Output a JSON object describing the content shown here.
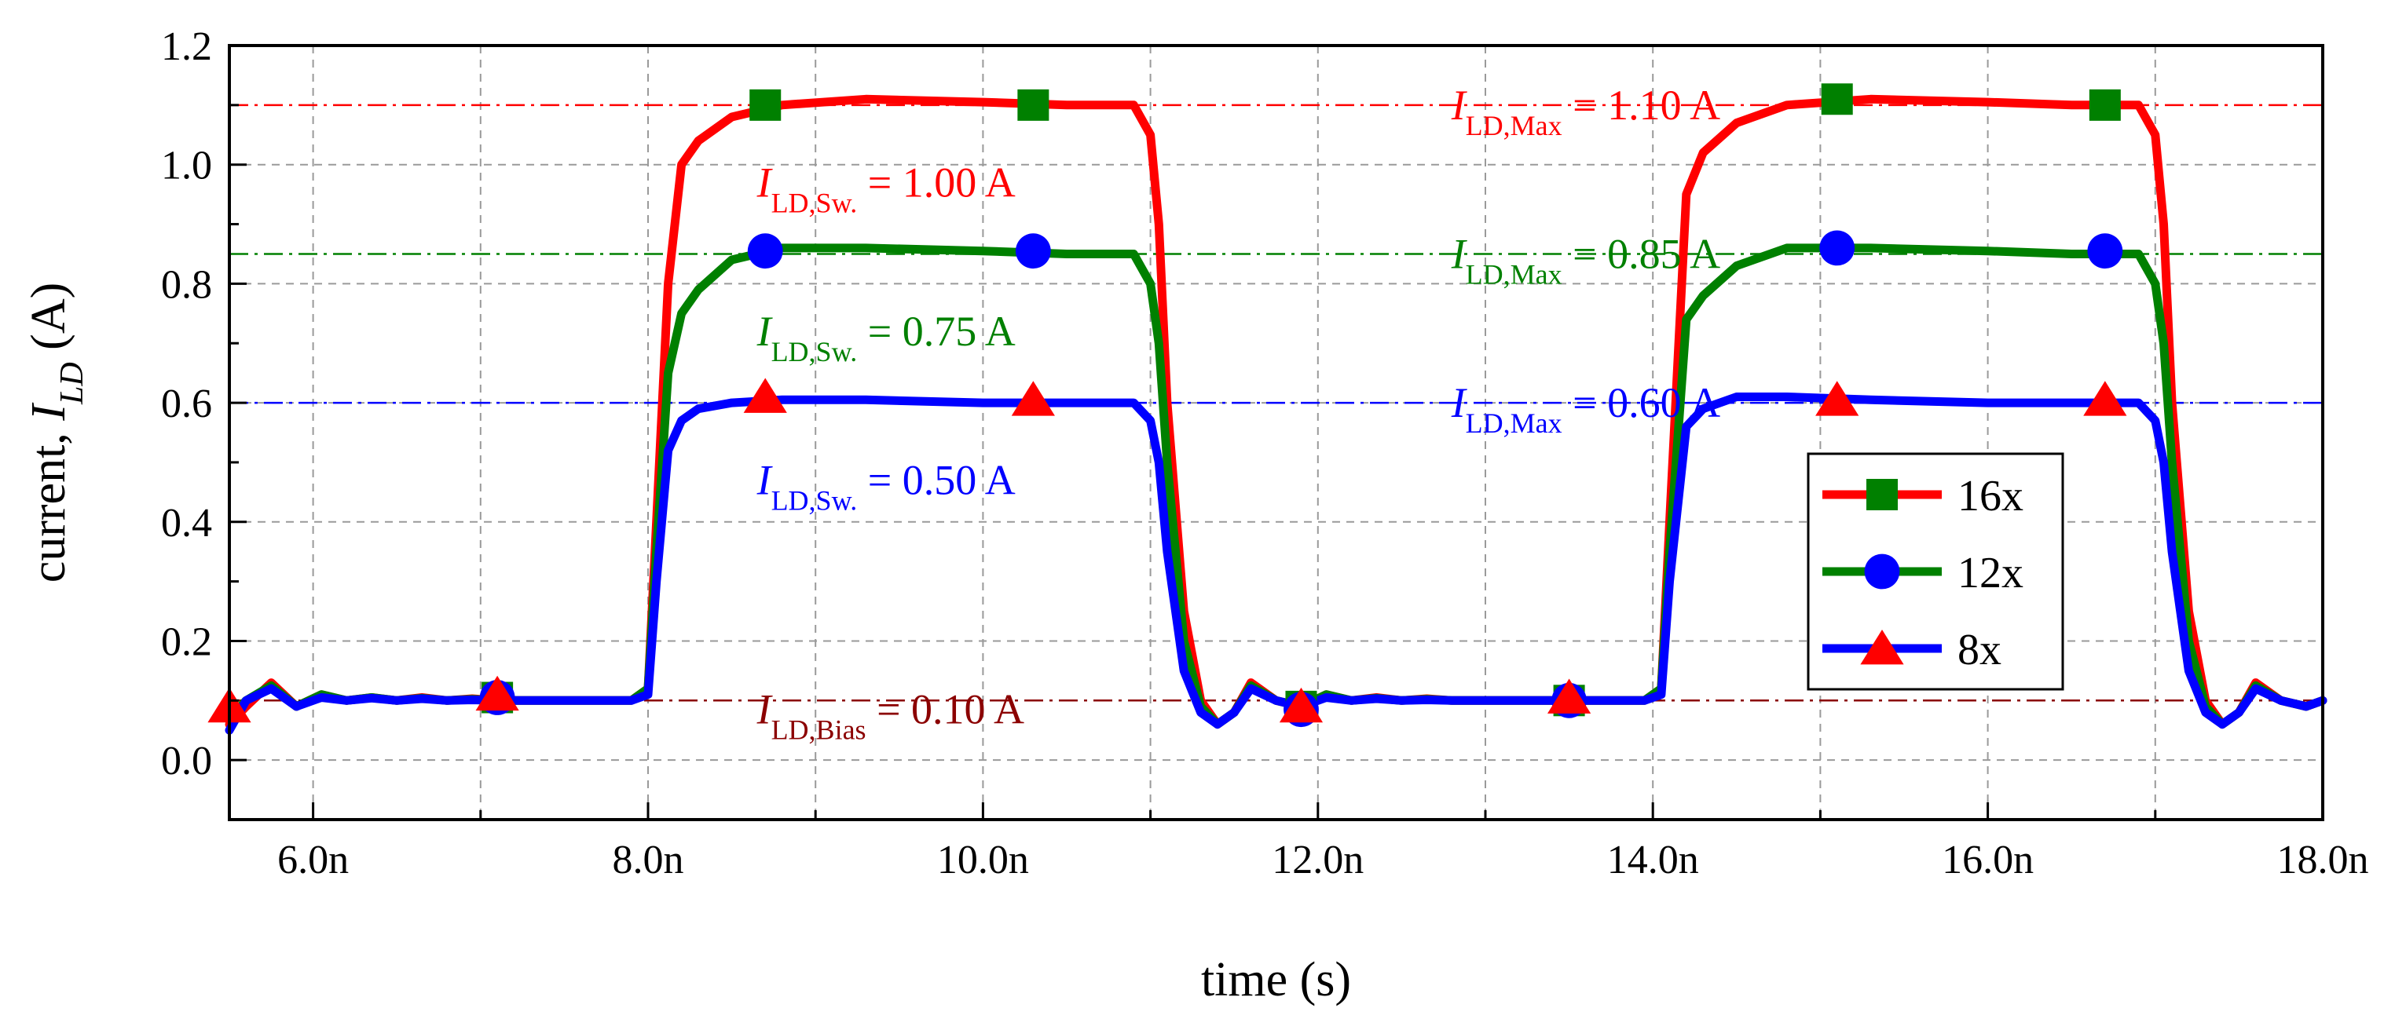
{
  "chart_data": {
    "type": "line",
    "xlabel": "time (s)",
    "ylabel": {
      "prefix": "current, ",
      "italic": "I",
      "sub": "LD",
      "suffix": " (A)"
    },
    "xlim": [
      5.5,
      18.0
    ],
    "ylim": [
      -0.1,
      1.2
    ],
    "x_ticks": [
      {
        "value": 6.0,
        "label": "6.0n"
      },
      {
        "value": 8.0,
        "label": "8.0n"
      },
      {
        "value": 10.0,
        "label": "10.0n"
      },
      {
        "value": 12.0,
        "label": "12.0n"
      },
      {
        "value": 14.0,
        "label": "14.0n"
      },
      {
        "value": 16.0,
        "label": "16.0n"
      },
      {
        "value": 18.0,
        "label": "18.0n"
      }
    ],
    "y_ticks": [
      {
        "value": 0.0,
        "label": "0.0"
      },
      {
        "value": 0.2,
        "label": "0.2"
      },
      {
        "value": 0.4,
        "label": "0.4"
      },
      {
        "value": 0.6,
        "label": "0.6"
      },
      {
        "value": 0.8,
        "label": "0.8"
      },
      {
        "value": 1.0,
        "label": "1.0"
      },
      {
        "value": 1.2,
        "label": "1.2"
      }
    ],
    "grid": true,
    "legend_position": "right",
    "series": [
      {
        "name": "16x",
        "color": "#ff0000",
        "marker": "square",
        "marker_color": "#008000",
        "x": [
          5.5,
          5.6,
          5.75,
          5.9,
          6.05,
          6.2,
          6.35,
          6.5,
          6.65,
          6.8,
          6.95,
          7.1,
          7.3,
          7.5,
          7.7,
          7.9,
          8.0,
          8.05,
          8.12,
          8.2,
          8.3,
          8.5,
          8.8,
          9.3,
          10.0,
          10.5,
          10.9,
          11.0,
          11.05,
          11.1,
          11.2,
          11.3,
          11.4,
          11.5,
          11.6,
          11.75,
          11.9,
          12.05,
          12.2,
          12.35,
          12.5,
          12.65,
          12.8,
          13.0,
          13.2,
          13.4,
          13.6,
          13.8,
          13.95,
          14.05,
          14.1,
          14.2,
          14.3,
          14.5,
          14.8,
          15.3,
          16.0,
          16.5,
          16.9,
          17.0,
          17.05,
          17.1,
          17.2,
          17.3,
          17.4,
          17.5,
          17.6,
          17.75,
          17.9,
          18.0
        ],
        "y": [
          0.06,
          0.09,
          0.13,
          0.09,
          0.11,
          0.1,
          0.105,
          0.1,
          0.105,
          0.1,
          0.103,
          0.1,
          0.1,
          0.1,
          0.1,
          0.1,
          0.12,
          0.4,
          0.8,
          1.0,
          1.04,
          1.08,
          1.1,
          1.11,
          1.105,
          1.1,
          1.1,
          1.05,
          0.9,
          0.6,
          0.25,
          0.1,
          0.06,
          0.08,
          0.13,
          0.1,
          0.09,
          0.11,
          0.1,
          0.105,
          0.1,
          0.103,
          0.1,
          0.1,
          0.1,
          0.1,
          0.1,
          0.1,
          0.1,
          0.12,
          0.4,
          0.95,
          1.02,
          1.07,
          1.1,
          1.11,
          1.105,
          1.1,
          1.1,
          1.05,
          0.9,
          0.6,
          0.25,
          0.1,
          0.06,
          0.08,
          0.13,
          0.1,
          0.09,
          0.1
        ],
        "marker_points": [
          [
            8.7,
            1.1
          ],
          [
            10.3,
            1.1
          ],
          [
            15.1,
            1.11
          ],
          [
            16.7,
            1.1
          ]
        ]
      },
      {
        "name": "12x",
        "color": "#008000",
        "marker": "circle",
        "marker_color": "#0000ff",
        "x": [
          5.5,
          5.6,
          5.75,
          5.9,
          6.05,
          6.2,
          6.35,
          6.5,
          6.65,
          6.8,
          6.95,
          7.1,
          7.3,
          7.5,
          7.7,
          7.9,
          8.0,
          8.05,
          8.12,
          8.2,
          8.3,
          8.5,
          8.8,
          9.3,
          10.0,
          10.5,
          10.9,
          11.0,
          11.05,
          11.1,
          11.2,
          11.3,
          11.4,
          11.5,
          11.6,
          11.75,
          11.9,
          12.05,
          12.2,
          12.35,
          12.5,
          12.65,
          12.8,
          13.0,
          13.2,
          13.4,
          13.6,
          13.8,
          13.95,
          14.05,
          14.1,
          14.2,
          14.3,
          14.5,
          14.8,
          15.3,
          16.0,
          16.5,
          16.9,
          17.0,
          17.05,
          17.1,
          17.2,
          17.3,
          17.4,
          17.5,
          17.6,
          17.75,
          17.9,
          18.0
        ],
        "y": [
          0.07,
          0.1,
          0.125,
          0.09,
          0.11,
          0.1,
          0.105,
          0.1,
          0.104,
          0.1,
          0.102,
          0.1,
          0.1,
          0.1,
          0.1,
          0.1,
          0.12,
          0.35,
          0.65,
          0.75,
          0.79,
          0.84,
          0.86,
          0.86,
          0.855,
          0.85,
          0.85,
          0.8,
          0.7,
          0.5,
          0.2,
          0.09,
          0.06,
          0.08,
          0.125,
          0.1,
          0.09,
          0.11,
          0.1,
          0.104,
          0.1,
          0.102,
          0.1,
          0.1,
          0.1,
          0.1,
          0.1,
          0.1,
          0.1,
          0.12,
          0.35,
          0.74,
          0.78,
          0.83,
          0.86,
          0.86,
          0.855,
          0.85,
          0.85,
          0.8,
          0.7,
          0.5,
          0.2,
          0.09,
          0.06,
          0.08,
          0.125,
          0.1,
          0.09,
          0.1
        ],
        "marker_points": [
          [
            8.7,
            0.855
          ],
          [
            10.3,
            0.855
          ],
          [
            15.1,
            0.86
          ],
          [
            16.7,
            0.855
          ]
        ]
      },
      {
        "name": "8x",
        "color": "#0000ff",
        "marker": "triangle",
        "marker_color": "#ff0000",
        "x": [
          5.5,
          5.6,
          5.75,
          5.9,
          6.05,
          6.2,
          6.35,
          6.5,
          6.65,
          6.8,
          6.95,
          7.1,
          7.3,
          7.5,
          7.7,
          7.9,
          8.0,
          8.05,
          8.12,
          8.2,
          8.3,
          8.5,
          8.8,
          9.3,
          10.0,
          10.5,
          10.9,
          11.0,
          11.05,
          11.1,
          11.2,
          11.3,
          11.4,
          11.5,
          11.6,
          11.75,
          11.9,
          12.05,
          12.2,
          12.35,
          12.5,
          12.65,
          12.8,
          13.0,
          13.2,
          13.4,
          13.6,
          13.8,
          13.95,
          14.05,
          14.1,
          14.2,
          14.3,
          14.5,
          14.8,
          15.3,
          16.0,
          16.5,
          16.9,
          17.0,
          17.05,
          17.1,
          17.2,
          17.3,
          17.4,
          17.5,
          17.6,
          17.75,
          17.9,
          18.0
        ],
        "y": [
          0.05,
          0.1,
          0.12,
          0.09,
          0.105,
          0.1,
          0.104,
          0.1,
          0.103,
          0.1,
          0.101,
          0.1,
          0.1,
          0.1,
          0.1,
          0.1,
          0.11,
          0.3,
          0.52,
          0.57,
          0.59,
          0.6,
          0.605,
          0.605,
          0.6,
          0.6,
          0.6,
          0.57,
          0.5,
          0.35,
          0.15,
          0.08,
          0.06,
          0.08,
          0.12,
          0.1,
          0.09,
          0.105,
          0.1,
          0.103,
          0.1,
          0.101,
          0.1,
          0.1,
          0.1,
          0.1,
          0.1,
          0.1,
          0.1,
          0.11,
          0.3,
          0.56,
          0.59,
          0.61,
          0.61,
          0.605,
          0.6,
          0.6,
          0.6,
          0.57,
          0.5,
          0.35,
          0.15,
          0.08,
          0.06,
          0.08,
          0.12,
          0.1,
          0.09,
          0.1
        ],
        "marker_points": [
          [
            8.7,
            0.61
          ],
          [
            10.3,
            0.605
          ],
          [
            15.1,
            0.605
          ],
          [
            16.7,
            0.605
          ]
        ]
      }
    ],
    "extra_markers": [
      {
        "x": 5.5,
        "y": 0.09,
        "shape": "triangle",
        "color": "#ff0000"
      },
      {
        "x": 7.1,
        "y": 0.105,
        "shape": "square",
        "color": "#008000"
      },
      {
        "x": 7.1,
        "y": 0.105,
        "shape": "circle",
        "color": "#0000ff"
      },
      {
        "x": 7.1,
        "y": 0.11,
        "shape": "triangle",
        "color": "#ff0000"
      },
      {
        "x": 11.9,
        "y": 0.09,
        "shape": "square",
        "color": "#008000"
      },
      {
        "x": 11.9,
        "y": 0.085,
        "shape": "circle",
        "color": "#0000ff"
      },
      {
        "x": 11.9,
        "y": 0.09,
        "shape": "triangle",
        "color": "#ff0000"
      },
      {
        "x": 13.5,
        "y": 0.1,
        "shape": "square",
        "color": "#008000"
      },
      {
        "x": 13.5,
        "y": 0.1,
        "shape": "circle",
        "color": "#0000ff"
      },
      {
        "x": 13.5,
        "y": 0.105,
        "shape": "triangle",
        "color": "#ff0000"
      }
    ],
    "reference_lines": [
      {
        "y": 1.1,
        "color": "#ff0000"
      },
      {
        "y": 0.85,
        "color": "#008000"
      },
      {
        "y": 0.6,
        "color": "#0000ff"
      },
      {
        "y": 0.1,
        "color": "#8b0000"
      }
    ],
    "annotations": [
      {
        "id": "max-16x",
        "x": 13.6,
        "y": 1.1,
        "anchor": "middle",
        "color": "#ff0000",
        "italic": "I",
        "sub": "LD,Max",
        "text": " = 1.10 A"
      },
      {
        "id": "max-12x",
        "x": 13.6,
        "y": 0.85,
        "anchor": "middle",
        "color": "#008000",
        "italic": "I",
        "sub": "LD,Max",
        "text": " = 0.85 A"
      },
      {
        "id": "max-8x",
        "x": 13.6,
        "y": 0.6,
        "anchor": "middle",
        "color": "#0000ff",
        "italic": "I",
        "sub": "LD,Max",
        "text": " = 0.60 A"
      },
      {
        "id": "sw-16x",
        "x": 8.65,
        "y": 0.97,
        "anchor": "start",
        "color": "#ff0000",
        "italic": "I",
        "sub": "LD,Sw.",
        "text": " = 1.00 A"
      },
      {
        "id": "sw-12x",
        "x": 8.65,
        "y": 0.72,
        "anchor": "start",
        "color": "#008000",
        "italic": "I",
        "sub": "LD,Sw.",
        "text": " = 0.75 A"
      },
      {
        "id": "sw-8x",
        "x": 8.65,
        "y": 0.47,
        "anchor": "start",
        "color": "#0000ff",
        "italic": "I",
        "sub": "LD,Sw.",
        "text": " = 0.50 A"
      },
      {
        "id": "bias",
        "x": 8.65,
        "y": 0.085,
        "anchor": "start",
        "color": "#8b0000",
        "italic": "I",
        "sub": "LD,Bias",
        "text": " = 0.10 A"
      }
    ]
  }
}
